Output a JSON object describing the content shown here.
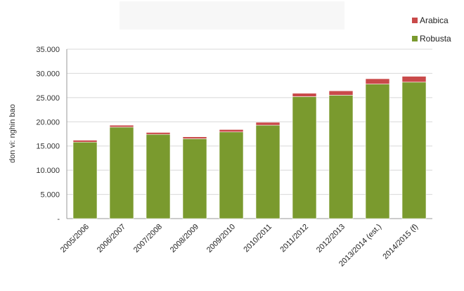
{
  "chart_data": {
    "type": "bar",
    "stacked": true,
    "categories": [
      "2005/2006",
      "2006/2007",
      "2007/2008",
      "2008/2009",
      "2009/2010",
      "2010/2011",
      "2011/2012",
      "2012/2013",
      "2013/2014 (est.)",
      "2014/2015 (f)"
    ],
    "series": [
      {
        "name": "Robusta",
        "color": "#7a9a2e",
        "values": [
          15800,
          18900,
          17400,
          16500,
          17900,
          19300,
          25200,
          25500,
          27800,
          28200
        ]
      },
      {
        "name": "Arabica",
        "color": "#c94a4a",
        "values": [
          400,
          400,
          400,
          400,
          500,
          600,
          700,
          900,
          1100,
          1200
        ]
      }
    ],
    "title": "",
    "xlabel": "",
    "ylabel": "don vi: nghin bao",
    "ylim": [
      0,
      35000
    ],
    "yticks": [
      0,
      5000,
      10000,
      15000,
      20000,
      25000,
      30000,
      35000
    ],
    "ytick_labels": [
      "-",
      "5.000",
      "10.000",
      "15.000",
      "20.000",
      "25.000",
      "30.000",
      "35.000"
    ],
    "grid": true,
    "legend_position": "top-right"
  },
  "legend": [
    {
      "label": "Arabica",
      "color": "#c94a4a"
    },
    {
      "label": "Robusta",
      "color": "#7a9a2e"
    }
  ]
}
